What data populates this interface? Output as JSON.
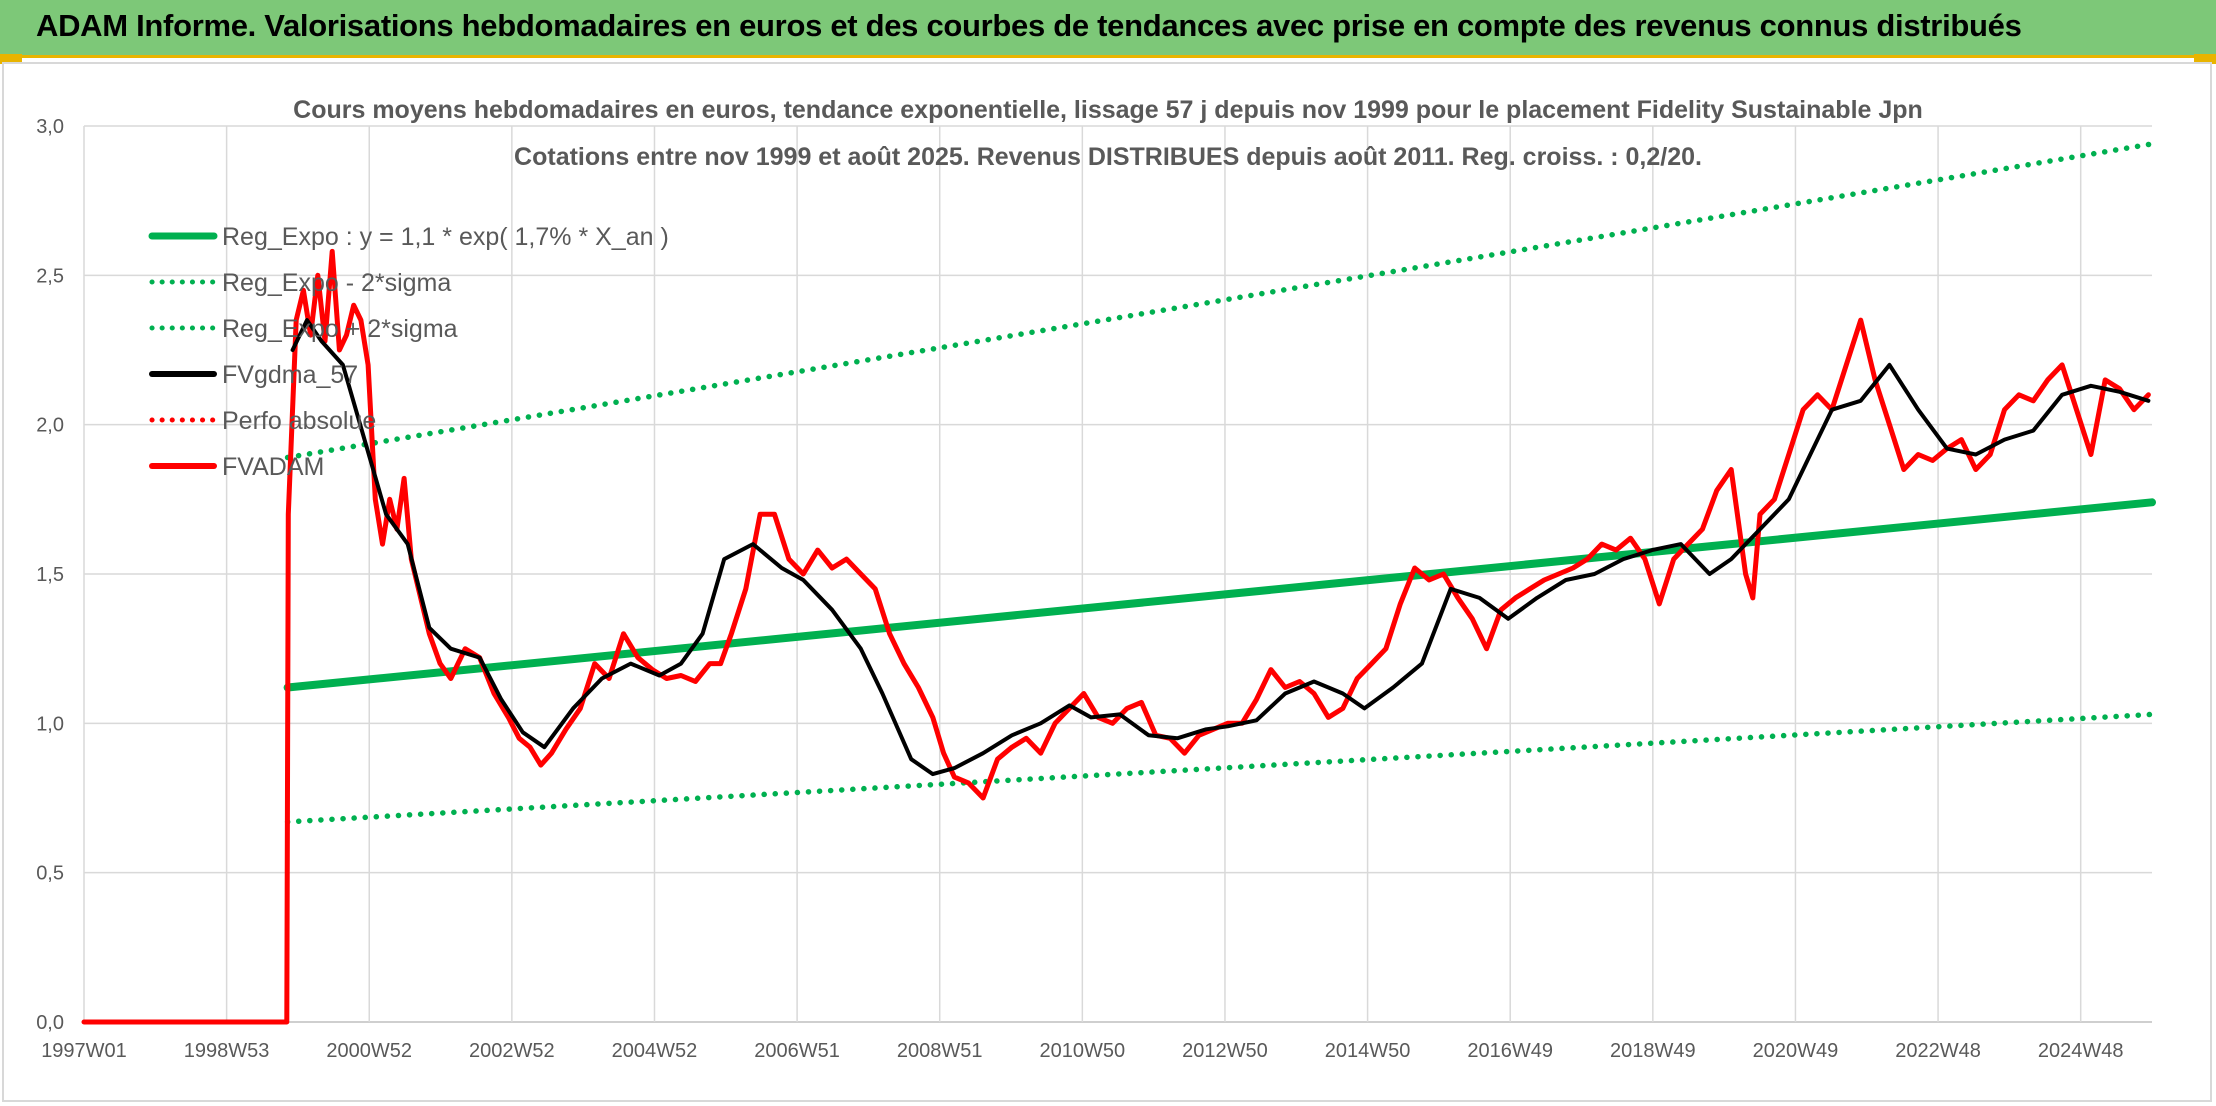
{
  "header": {
    "title": "ADAM Informe. Valorisations hebdomadaires en euros et des courbes de tendances avec prise en compte des revenus connus distribués"
  },
  "colors": {
    "banner": "#7dc878",
    "accent": "#e8b400",
    "reg": "#00b050",
    "ma": "#000000",
    "price": "#ff0000"
  },
  "chart_data": {
    "type": "line",
    "title": "Cours moyens hebdomadaires en euros, tendance exponentielle, lissage 57 j depuis nov 1999 pour le placement Fidelity Sustainable Jpn",
    "subtitle": "Cotations entre nov 1999 et août 2025. Revenus DISTRIBUES depuis août 2011. Reg. croiss. : 0,2/20.",
    "xlabel": "",
    "ylabel": "",
    "ylim": [
      0,
      3.0
    ],
    "xlim": [
      1997.0,
      2025.75
    ],
    "y_ticks": [
      "0,0",
      "0,5",
      "1,0",
      "1,5",
      "2,0",
      "2,5",
      "3,0"
    ],
    "x_ticks": [
      "1997W01",
      "1998W53",
      "2000W52",
      "2002W52",
      "2004W52",
      "2006W51",
      "2008W51",
      "2010W50",
      "2012W50",
      "2014W50",
      "2016W49",
      "2018W49",
      "2020W49",
      "2022W48",
      "2024W48"
    ],
    "grid": true,
    "legend_position": "top-left",
    "series": [
      {
        "name": "Reg_Expo : y = 1,1 * exp( 1,7% *  X_an )",
        "style": "solid",
        "color": "#00b050",
        "x": [
          1999.83,
          2025.75
        ],
        "y": [
          1.12,
          1.74
        ]
      },
      {
        "name": "Reg_Expo - 2*sigma",
        "style": "dotted",
        "color": "#00b050",
        "x": [
          1999.83,
          2025.75
        ],
        "y": [
          0.67,
          1.03
        ]
      },
      {
        "name": "Reg_Expo + 2*sigma",
        "style": "dotted",
        "color": "#00b050",
        "x": [
          1999.83,
          2025.75
        ],
        "y": [
          1.89,
          2.94
        ]
      },
      {
        "name": "FVgdma_57",
        "style": "solid",
        "color": "#000000",
        "x": [
          1999.9,
          2000.1,
          2000.3,
          2000.6,
          2000.9,
          2001.2,
          2001.5,
          2001.8,
          2002.1,
          2002.5,
          2002.8,
          2003.1,
          2003.4,
          2003.8,
          2004.2,
          2004.6,
          2005.0,
          2005.3,
          2005.6,
          2005.9,
          2006.3,
          2006.7,
          2007.0,
          2007.4,
          2007.8,
          2008.1,
          2008.5,
          2008.8,
          2009.1,
          2009.5,
          2009.9,
          2010.3,
          2010.7,
          2011.0,
          2011.4,
          2011.8,
          2012.2,
          2012.6,
          2012.9,
          2013.3,
          2013.7,
          2014.1,
          2014.5,
          2014.8,
          2015.2,
          2015.6,
          2016.0,
          2016.4,
          2016.8,
          2017.2,
          2017.6,
          2018.0,
          2018.4,
          2018.8,
          2019.2,
          2019.6,
          2019.9,
          2020.3,
          2020.7,
          2021.0,
          2021.3,
          2021.7,
          2022.1,
          2022.5,
          2022.9,
          2023.3,
          2023.7,
          2024.1,
          2024.5,
          2024.9,
          2025.3,
          2025.7
        ],
        "y": [
          2.25,
          2.35,
          2.28,
          2.2,
          1.95,
          1.7,
          1.6,
          1.32,
          1.25,
          1.22,
          1.08,
          0.97,
          0.92,
          1.05,
          1.15,
          1.2,
          1.16,
          1.2,
          1.3,
          1.55,
          1.6,
          1.52,
          1.48,
          1.38,
          1.25,
          1.1,
          0.88,
          0.83,
          0.85,
          0.9,
          0.96,
          1.0,
          1.06,
          1.02,
          1.03,
          0.96,
          0.95,
          0.98,
          0.99,
          1.01,
          1.1,
          1.14,
          1.1,
          1.05,
          1.12,
          1.2,
          1.45,
          1.42,
          1.35,
          1.42,
          1.48,
          1.5,
          1.55,
          1.58,
          1.6,
          1.5,
          1.55,
          1.65,
          1.75,
          1.9,
          2.05,
          2.08,
          2.2,
          2.05,
          1.92,
          1.9,
          1.95,
          1.98,
          2.1,
          2.13,
          2.11,
          2.08
        ]
      },
      {
        "name": "Perfo absolue",
        "style": "dotted",
        "color": "#ff0000",
        "x": [],
        "y": []
      },
      {
        "name": "FVADAM",
        "style": "solid",
        "color": "#ff0000",
        "x": [
          1997.0,
          1999.82,
          1999.84,
          1999.95,
          2000.05,
          2000.15,
          2000.25,
          2000.35,
          2000.45,
          2000.55,
          2000.65,
          2000.75,
          2000.85,
          2000.95,
          2001.05,
          2001.15,
          2001.25,
          2001.35,
          2001.45,
          2001.55,
          2001.65,
          2001.8,
          2001.95,
          2002.1,
          2002.3,
          2002.5,
          2002.7,
          2002.9,
          2003.05,
          2003.2,
          2003.35,
          2003.5,
          2003.7,
          2003.9,
          2004.1,
          2004.3,
          2004.5,
          2004.7,
          2004.9,
          2005.1,
          2005.3,
          2005.5,
          2005.7,
          2005.85,
          2006.0,
          2006.2,
          2006.4,
          2006.6,
          2006.8,
          2007.0,
          2007.2,
          2007.4,
          2007.6,
          2007.8,
          2008.0,
          2008.2,
          2008.4,
          2008.6,
          2008.8,
          2008.95,
          2009.1,
          2009.3,
          2009.5,
          2009.7,
          2009.9,
          2010.1,
          2010.3,
          2010.5,
          2010.7,
          2010.9,
          2011.1,
          2011.3,
          2011.5,
          2011.7,
          2011.9,
          2012.1,
          2012.3,
          2012.5,
          2012.7,
          2012.9,
          2013.1,
          2013.3,
          2013.5,
          2013.7,
          2013.9,
          2014.1,
          2014.3,
          2014.5,
          2014.7,
          2014.9,
          2015.1,
          2015.3,
          2015.5,
          2015.7,
          2015.9,
          2016.1,
          2016.3,
          2016.5,
          2016.7,
          2016.9,
          2017.1,
          2017.3,
          2017.5,
          2017.7,
          2017.9,
          2018.1,
          2018.3,
          2018.5,
          2018.7,
          2018.9,
          2019.1,
          2019.3,
          2019.5,
          2019.7,
          2019.9,
          2020.1,
          2020.2,
          2020.3,
          2020.5,
          2020.7,
          2020.9,
          2021.1,
          2021.3,
          2021.5,
          2021.7,
          2021.9,
          2022.1,
          2022.3,
          2022.5,
          2022.7,
          2022.9,
          2023.1,
          2023.3,
          2023.5,
          2023.7,
          2023.9,
          2024.1,
          2024.3,
          2024.5,
          2024.7,
          2024.9,
          2025.1,
          2025.3,
          2025.5,
          2025.7
        ],
        "y": [
          0.0,
          0.0,
          1.7,
          2.35,
          2.45,
          2.3,
          2.5,
          2.28,
          2.58,
          2.25,
          2.3,
          2.4,
          2.35,
          2.2,
          1.75,
          1.6,
          1.75,
          1.65,
          1.82,
          1.55,
          1.45,
          1.3,
          1.2,
          1.15,
          1.25,
          1.22,
          1.1,
          1.02,
          0.95,
          0.92,
          0.86,
          0.9,
          0.98,
          1.05,
          1.2,
          1.15,
          1.3,
          1.22,
          1.18,
          1.15,
          1.16,
          1.14,
          1.2,
          1.2,
          1.3,
          1.45,
          1.7,
          1.7,
          1.55,
          1.5,
          1.58,
          1.52,
          1.55,
          1.5,
          1.45,
          1.3,
          1.2,
          1.12,
          1.02,
          0.9,
          0.82,
          0.8,
          0.75,
          0.88,
          0.92,
          0.95,
          0.9,
          1.0,
          1.05,
          1.1,
          1.02,
          1.0,
          1.05,
          1.07,
          0.96,
          0.95,
          0.9,
          0.96,
          0.98,
          1.0,
          1.0,
          1.08,
          1.18,
          1.12,
          1.14,
          1.1,
          1.02,
          1.05,
          1.15,
          1.2,
          1.25,
          1.4,
          1.52,
          1.48,
          1.5,
          1.42,
          1.35,
          1.25,
          1.38,
          1.42,
          1.45,
          1.48,
          1.5,
          1.52,
          1.55,
          1.6,
          1.58,
          1.62,
          1.55,
          1.4,
          1.55,
          1.6,
          1.65,
          1.78,
          1.85,
          1.5,
          1.42,
          1.7,
          1.75,
          1.9,
          2.05,
          2.1,
          2.05,
          2.2,
          2.35,
          2.15,
          2.0,
          1.85,
          1.9,
          1.88,
          1.92,
          1.95,
          1.85,
          1.9,
          2.05,
          2.1,
          2.08,
          2.15,
          2.2,
          2.05,
          1.9,
          2.15,
          2.12,
          2.05,
          2.1
        ]
      }
    ]
  }
}
